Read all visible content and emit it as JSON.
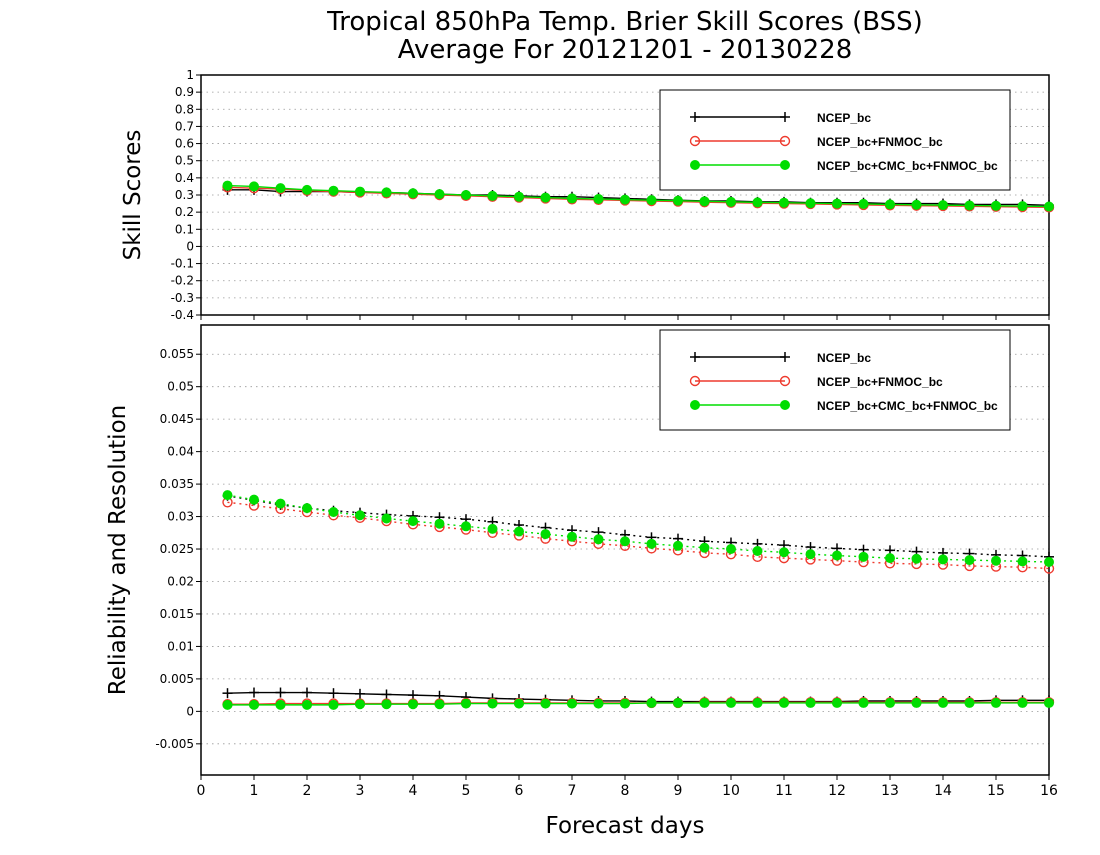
{
  "title_line1": "Tropical 850hPa Temp. Brier Skill Scores (BSS)",
  "title_line2": "Average For 20121201 - 20130228",
  "xlabel": "Forecast days",
  "colors": {
    "ncep": "#000000",
    "fnmoc": "#ee3a2e",
    "cmc": "#00dd00",
    "grid": "#999999"
  },
  "chart_data": [
    {
      "type": "line",
      "ylabel": "Skill Scores",
      "ylim": [
        -0.4,
        1
      ],
      "xlim": [
        0,
        16
      ],
      "y_ticks": [
        "-0.4",
        "-0.3",
        "-0.2",
        "-0.1",
        "0",
        "0.1",
        "0.2",
        "0.3",
        "0.4",
        "0.5",
        "0.6",
        "0.7",
        "0.8",
        "0.9",
        "1"
      ],
      "x_ticks": [
        "0",
        "1",
        "2",
        "3",
        "4",
        "5",
        "6",
        "7",
        "8",
        "9",
        "10",
        "11",
        "12",
        "13",
        "14",
        "15",
        "16"
      ],
      "grid": "horizontal dotted",
      "legend_position": "top-right",
      "x": [
        0.5,
        1,
        1.5,
        2,
        2.5,
        3,
        3.5,
        4,
        4.5,
        5,
        5.5,
        6,
        6.5,
        7,
        7.5,
        8,
        8.5,
        9,
        9.5,
        10,
        10.5,
        11,
        11.5,
        12,
        12.5,
        13,
        13.5,
        14,
        14.5,
        15,
        15.5,
        16
      ],
      "series": [
        {
          "name": "NCEP_bc",
          "marker": "plus",
          "line": "solid",
          "color": "#000000",
          "values": [
            0.33,
            0.33,
            0.32,
            0.32,
            0.32,
            0.315,
            0.315,
            0.31,
            0.305,
            0.3,
            0.3,
            0.295,
            0.29,
            0.29,
            0.285,
            0.28,
            0.275,
            0.27,
            0.265,
            0.265,
            0.26,
            0.26,
            0.255,
            0.255,
            0.255,
            0.25,
            0.25,
            0.25,
            0.245,
            0.245,
            0.245,
            0.24
          ]
        },
        {
          "name": "NCEP_bc+FNMOC_bc",
          "marker": "open-circle",
          "line": "solid",
          "color": "#ee3a2e",
          "values": [
            0.345,
            0.34,
            0.335,
            0.325,
            0.32,
            0.315,
            0.31,
            0.305,
            0.3,
            0.295,
            0.29,
            0.285,
            0.28,
            0.275,
            0.272,
            0.268,
            0.265,
            0.262,
            0.258,
            0.255,
            0.252,
            0.25,
            0.248,
            0.245,
            0.242,
            0.24,
            0.238,
            0.236,
            0.234,
            0.232,
            0.23,
            0.228
          ]
        },
        {
          "name": "NCEP_bc+CMC_bc+FNMOC_bc",
          "marker": "filled-circle",
          "line": "solid",
          "color": "#00dd00",
          "values": [
            0.355,
            0.35,
            0.34,
            0.33,
            0.325,
            0.32,
            0.315,
            0.31,
            0.305,
            0.3,
            0.295,
            0.29,
            0.285,
            0.28,
            0.277,
            0.273,
            0.27,
            0.267,
            0.263,
            0.26,
            0.257,
            0.255,
            0.252,
            0.25,
            0.248,
            0.245,
            0.243,
            0.241,
            0.239,
            0.237,
            0.235,
            0.233
          ]
        }
      ]
    },
    {
      "type": "line",
      "ylabel": "Reliability and Resolution",
      "ylim": [
        -0.0098,
        0.0595
      ],
      "xlim": [
        0,
        16
      ],
      "y_ticks": [
        "-0.005",
        "0",
        "0.005",
        "0.01",
        "0.015",
        "0.02",
        "0.025",
        "0.03",
        "0.035",
        "0.04",
        "0.045",
        "0.05",
        "0.055"
      ],
      "x_ticks": [
        "0",
        "1",
        "2",
        "3",
        "4",
        "5",
        "6",
        "7",
        "8",
        "9",
        "10",
        "11",
        "12",
        "13",
        "14",
        "15",
        "16"
      ],
      "grid": "horizontal dotted",
      "legend_position": "top-right",
      "x": [
        0.5,
        1,
        1.5,
        2,
        2.5,
        3,
        3.5,
        4,
        4.5,
        5,
        5.5,
        6,
        6.5,
        7,
        7.5,
        8,
        8.5,
        9,
        9.5,
        10,
        10.5,
        11,
        11.5,
        12,
        12.5,
        13,
        13.5,
        14,
        14.5,
        15,
        15.5,
        16
      ],
      "series": [
        {
          "name": "NCEP_bc",
          "marker": "plus",
          "line": "dotted",
          "color": "#000000",
          "values": [
            0.0332,
            0.0325,
            0.0318,
            0.0313,
            0.0309,
            0.0306,
            0.0303,
            0.0301,
            0.0299,
            0.0296,
            0.0292,
            0.0287,
            0.0283,
            0.0279,
            0.0276,
            0.0272,
            0.0268,
            0.0266,
            0.0262,
            0.026,
            0.0258,
            0.0256,
            0.0253,
            0.0251,
            0.0249,
            0.0248,
            0.0246,
            0.0244,
            0.0243,
            0.0241,
            0.024,
            0.0238
          ]
        },
        {
          "name": "NCEP_bc+FNMOC_bc",
          "marker": "open-circle",
          "line": "dotted",
          "color": "#ee3a2e",
          "values": [
            0.0322,
            0.0317,
            0.0312,
            0.0307,
            0.0302,
            0.0298,
            0.0293,
            0.0288,
            0.0284,
            0.028,
            0.0275,
            0.0271,
            0.0266,
            0.0262,
            0.0258,
            0.0255,
            0.0251,
            0.0248,
            0.0244,
            0.0242,
            0.0238,
            0.0236,
            0.0234,
            0.0232,
            0.023,
            0.0228,
            0.0227,
            0.0226,
            0.0224,
            0.0223,
            0.0222,
            0.022
          ]
        },
        {
          "name": "NCEP_bc+CMC_bc+FNMOC_bc",
          "marker": "filled-circle",
          "line": "dotted",
          "color": "#00dd00",
          "values": [
            0.0333,
            0.0326,
            0.032,
            0.0313,
            0.0307,
            0.0302,
            0.0297,
            0.0293,
            0.0289,
            0.0285,
            0.0281,
            0.0277,
            0.0273,
            0.0269,
            0.0265,
            0.0262,
            0.0258,
            0.0255,
            0.0252,
            0.025,
            0.0247,
            0.0245,
            0.0242,
            0.024,
            0.0238,
            0.0236,
            0.0235,
            0.0234,
            0.0233,
            0.0232,
            0.0231,
            0.023
          ]
        },
        {
          "name": "NCEP_bc",
          "marker": "plus",
          "line": "solid",
          "color": "#000000",
          "values": [
            0.0028,
            0.0029,
            0.0029,
            0.0029,
            0.0028,
            0.0027,
            0.0026,
            0.0025,
            0.0024,
            0.0022,
            0.002,
            0.0019,
            0.0018,
            0.0017,
            0.0016,
            0.0016,
            0.0015,
            0.0015,
            0.0015,
            0.0015,
            0.0015,
            0.0015,
            0.0015,
            0.0015,
            0.0016,
            0.0016,
            0.0016,
            0.0016,
            0.0016,
            0.0017,
            0.0017,
            0.0017
          ]
        },
        {
          "name": "NCEP_bc+FNMOC_bc",
          "marker": "open-circle",
          "line": "solid",
          "color": "#ee3a2e",
          "values": [
            0.0011,
            0.0011,
            0.0012,
            0.0012,
            0.0012,
            0.0012,
            0.0012,
            0.0012,
            0.0012,
            0.0013,
            0.0013,
            0.0013,
            0.0013,
            0.0013,
            0.0013,
            0.0013,
            0.0013,
            0.0013,
            0.0014,
            0.0014,
            0.0014,
            0.0014,
            0.0014,
            0.0014,
            0.0014,
            0.0014,
            0.0014,
            0.0014,
            0.0014,
            0.0014,
            0.0014,
            0.0014
          ]
        },
        {
          "name": "NCEP_bc+CMC_bc+FNMOC_bc",
          "marker": "filled-circle",
          "line": "solid",
          "color": "#00dd00",
          "values": [
            0.001,
            0.001,
            0.001,
            0.001,
            0.001,
            0.0011,
            0.0011,
            0.0011,
            0.0011,
            0.0012,
            0.0012,
            0.0012,
            0.0012,
            0.0012,
            0.0012,
            0.0012,
            0.0013,
            0.0013,
            0.0013,
            0.0013,
            0.0013,
            0.0013,
            0.0013,
            0.0013,
            0.0013,
            0.0013,
            0.0013,
            0.0013,
            0.0013,
            0.0013,
            0.0013,
            0.0013
          ]
        }
      ]
    }
  ],
  "legend": [
    "NCEP_bc",
    "NCEP_bc+FNMOC_bc",
    "NCEP_bc+CMC_bc+FNMOC_bc"
  ]
}
